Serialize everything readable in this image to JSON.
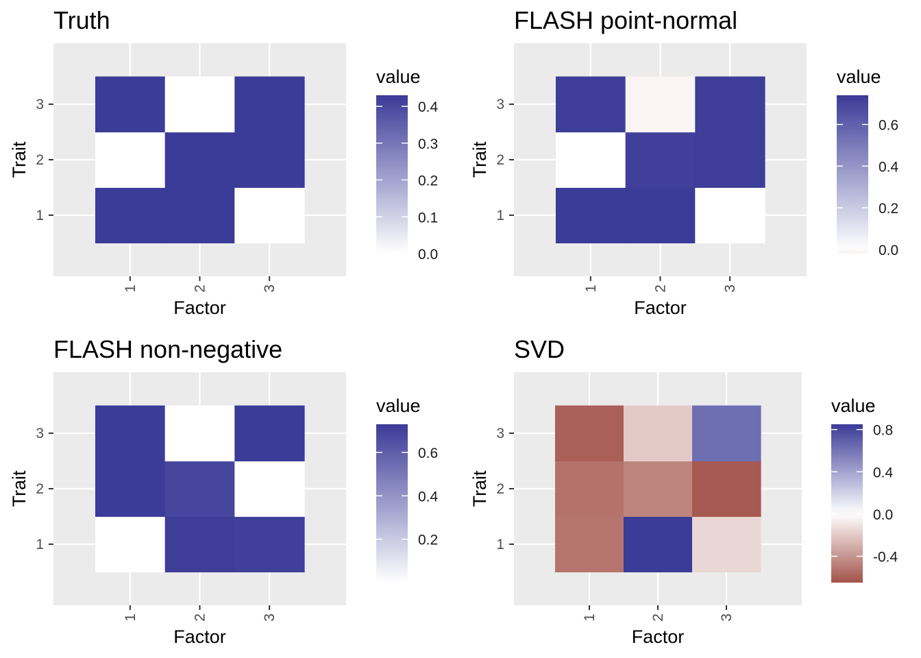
{
  "chart_data": [
    {
      "type": "heatmap",
      "title": "Truth",
      "xlabel": "Factor",
      "ylabel": "Trait",
      "x_categories": [
        "1",
        "2",
        "3"
      ],
      "y_categories": [
        "1",
        "2",
        "3"
      ],
      "values": [
        [
          0.43,
          0.43,
          0.0
        ],
        [
          0.0,
          0.43,
          0.43
        ],
        [
          0.43,
          0.0,
          0.43
        ]
      ],
      "legend": {
        "title": "value",
        "limits": [
          0.0,
          0.43
        ],
        "breaks": [
          0.0,
          0.1,
          0.2,
          0.3,
          0.4
        ],
        "break_labels": [
          "0.0",
          "0.1",
          "0.2",
          "0.3",
          "0.4"
        ],
        "placement": "right"
      },
      "colors": {
        "low": "#ffffff",
        "high": "#3b3b98"
      },
      "grid": true
    },
    {
      "type": "heatmap",
      "title": "FLASH point-normal",
      "xlabel": "Factor",
      "ylabel": "Trait",
      "x_categories": [
        "1",
        "2",
        "3"
      ],
      "y_categories": [
        "1",
        "2",
        "3"
      ],
      "values": [
        [
          0.74,
          0.74,
          0.0
        ],
        [
          0.0,
          0.72,
          0.73
        ],
        [
          0.73,
          -0.02,
          0.73
        ]
      ],
      "legend": {
        "title": "value",
        "limits": [
          -0.02,
          0.74
        ],
        "breaks": [
          0.0,
          0.2,
          0.4,
          0.6
        ],
        "break_labels": [
          "0.0",
          "0.2",
          "0.4",
          "0.6"
        ],
        "placement": "right"
      },
      "colors": {
        "low": "#faf5f4",
        "mid": "#ffffff",
        "high": "#3b3b98"
      },
      "grid": true
    },
    {
      "type": "heatmap",
      "title": "FLASH non-negative",
      "xlabel": "Factor",
      "ylabel": "Trait",
      "x_categories": [
        "1",
        "2",
        "3"
      ],
      "y_categories": [
        "1",
        "2",
        "3"
      ],
      "values": [
        [
          0.0,
          0.72,
          0.71
        ],
        [
          0.73,
          0.69,
          0.0
        ],
        [
          0.73,
          0.0,
          0.73
        ]
      ],
      "legend": {
        "title": "value",
        "limits": [
          0.0,
          0.73
        ],
        "breaks": [
          0.2,
          0.4,
          0.6
        ],
        "break_labels": [
          "0.2",
          "0.4",
          "0.6"
        ],
        "placement": "right"
      },
      "colors": {
        "low": "#ffffff",
        "high": "#3b3b98"
      },
      "grid": true
    },
    {
      "type": "heatmap",
      "title": "SVD",
      "xlabel": "Factor",
      "ylabel": "Trait",
      "x_categories": [
        "1",
        "2",
        "3"
      ],
      "y_categories": [
        "1",
        "2",
        "3"
      ],
      "values": [
        [
          -0.52,
          0.85,
          -0.15
        ],
        [
          -0.53,
          -0.46,
          -0.62
        ],
        [
          -0.6,
          -0.2,
          0.63
        ]
      ],
      "legend": {
        "title": "value",
        "limits": [
          -0.65,
          0.85
        ],
        "breaks": [
          -0.4,
          0.0,
          0.4,
          0.8
        ],
        "break_labels": [
          "-0.4",
          "0.0",
          "0.4",
          "0.8"
        ],
        "placement": "right"
      },
      "colors": {
        "low": "#a3524a",
        "mid": "#ffffff",
        "high": "#3b3b98"
      },
      "grid": true
    }
  ]
}
